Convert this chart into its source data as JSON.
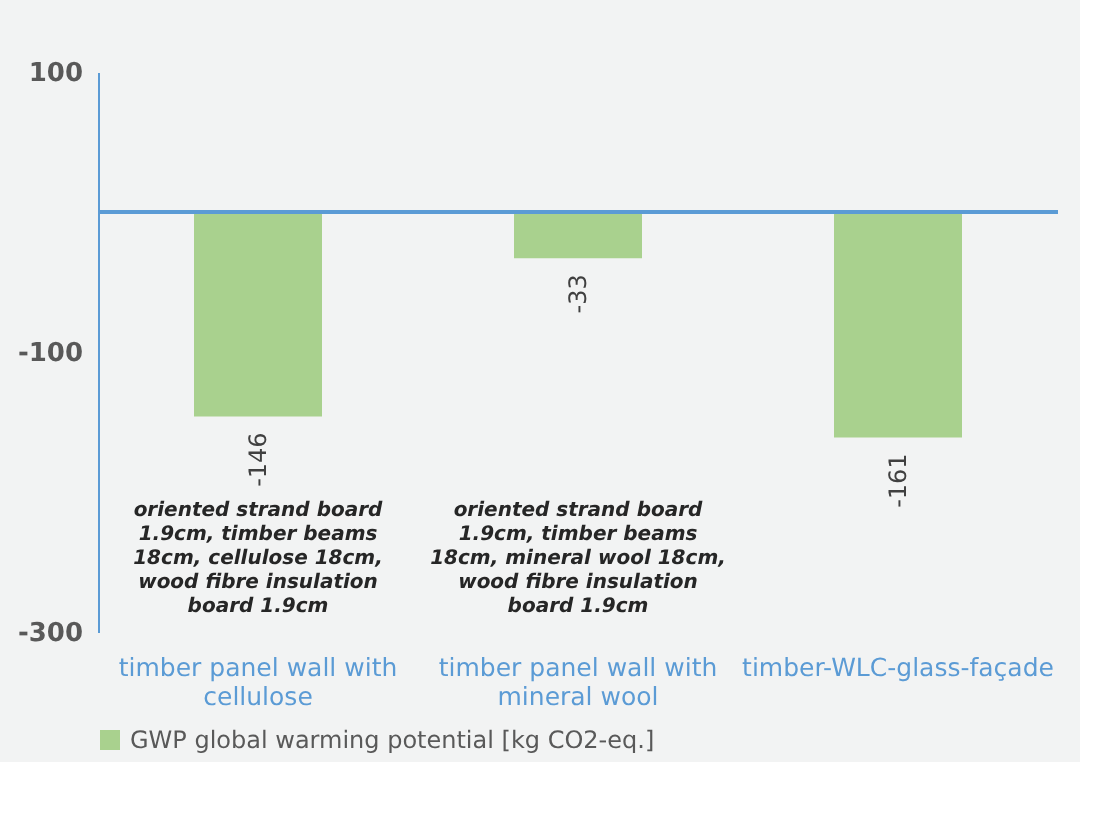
{
  "chart_data": {
    "type": "bar",
    "categories": [
      "timber panel wall with cellulose",
      "timber panel wall with mineral wool",
      "timber-WLC-glass-façade"
    ],
    "series": [
      {
        "name": "GWP global warming potential [kg CO2-eq.]",
        "color": "#a9d18e",
        "values": [
          -146,
          -33,
          -161
        ]
      }
    ],
    "ylim": [
      -300,
      100
    ],
    "yticks": [
      100,
      -100,
      -300
    ],
    "grid": false,
    "legend": "bottom",
    "data_labels": true,
    "ref_lines": [
      {
        "axis": "y",
        "value": 0,
        "label": null,
        "color": "#5b9bd5"
      }
    ],
    "annotations": [
      "oriented strand board\n1.9cm, timber beams\n18cm, cellulose 18cm,\nwood fibre insulation\nboard 1.9cm",
      "oriented strand board\n1.9cm, timber beams\n18cm, mineral wool 18cm,\nwood fibre insulation\nboard 1.9cm"
    ]
  }
}
